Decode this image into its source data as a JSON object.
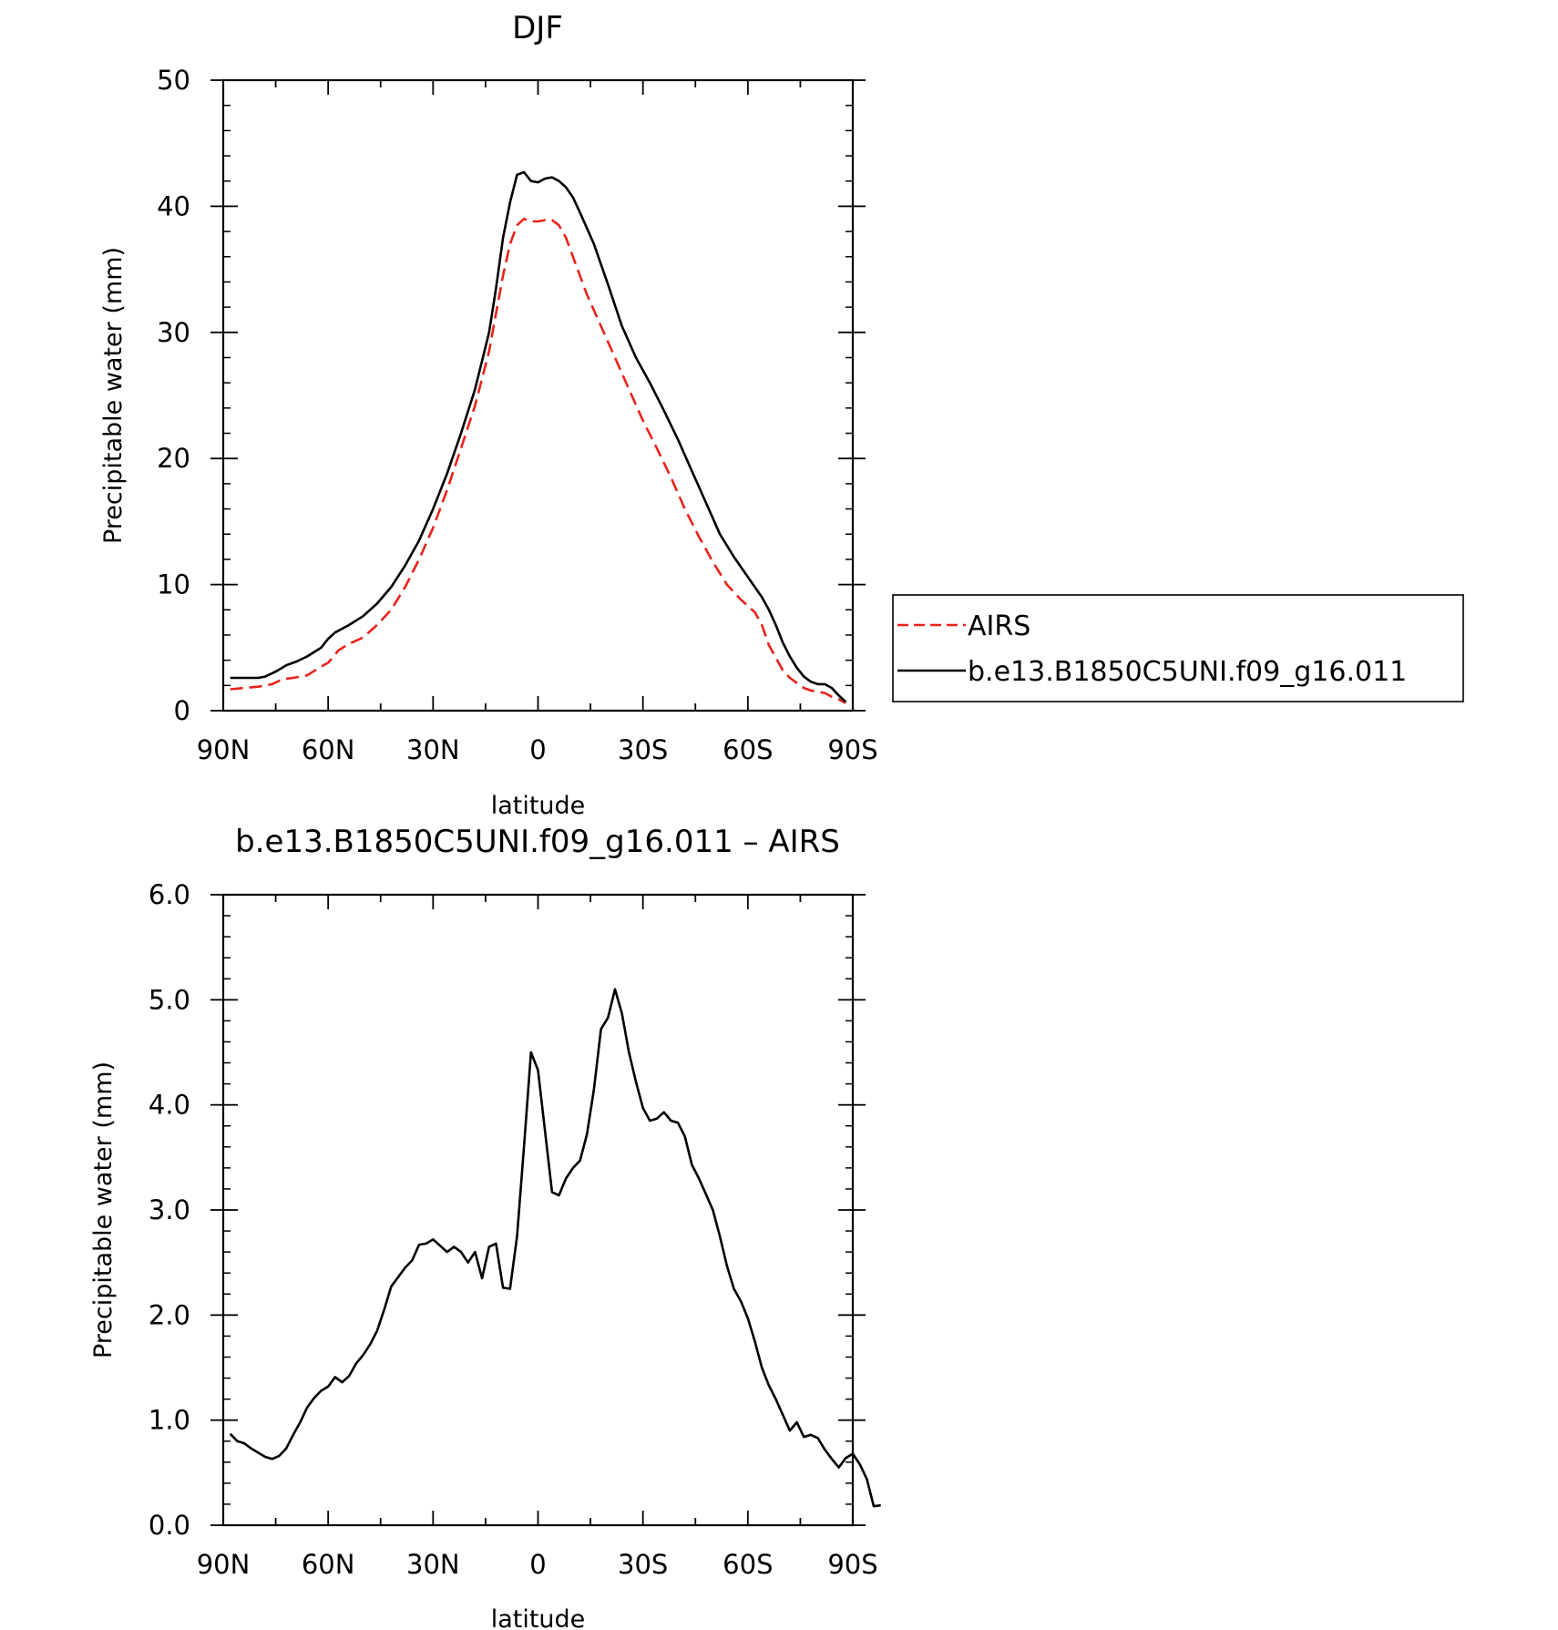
{
  "chart_data": [
    {
      "type": "line",
      "title": "DJF",
      "xlabel": "latitude",
      "ylabel": "Precipitable water (mm)",
      "xlim": [
        90,
        -90
      ],
      "ylim": [
        0,
        50
      ],
      "x_ticks": [
        90,
        60,
        30,
        0,
        -30,
        -60,
        -90
      ],
      "x_tick_labels": [
        "90N",
        "60N",
        "30N",
        "0",
        "30S",
        "60S",
        "90S"
      ],
      "y_ticks": [
        0,
        10,
        20,
        30,
        40,
        50
      ],
      "y_tick_labels": [
        "0",
        "10",
        "20",
        "30",
        "40",
        "50"
      ],
      "legend_position": "right",
      "series": [
        {
          "name": "AIRS",
          "color": "#e8231c",
          "dash": "dashed",
          "points": [
            [
              88,
              1.7
            ],
            [
              84,
              1.8
            ],
            [
              80,
              1.9
            ],
            [
              76,
              2.1
            ],
            [
              73,
              2.5
            ],
            [
              70,
              2.6
            ],
            [
              66,
              2.8
            ],
            [
              62,
              3.5
            ],
            [
              60,
              3.8
            ],
            [
              57,
              4.8
            ],
            [
              54,
              5.3
            ],
            [
              50,
              5.8
            ],
            [
              46,
              6.8
            ],
            [
              42,
              8.0
            ],
            [
              38,
              9.8
            ],
            [
              34,
              12.0
            ],
            [
              30,
              14.5
            ],
            [
              26,
              17.5
            ],
            [
              22,
              20.8
            ],
            [
              18,
              24.2
            ],
            [
              14,
              28.5
            ],
            [
              12,
              31.5
            ],
            [
              10,
              34.5
            ],
            [
              8,
              37.0
            ],
            [
              6,
              38.5
            ],
            [
              4,
              39.0
            ],
            [
              2,
              38.8
            ],
            [
              0,
              38.8
            ],
            [
              -2,
              38.9
            ],
            [
              -4,
              38.9
            ],
            [
              -6,
              38.5
            ],
            [
              -8,
              37.5
            ],
            [
              -10,
              36.0
            ],
            [
              -14,
              33.0
            ],
            [
              -18,
              30.5
            ],
            [
              -22,
              28.0
            ],
            [
              -26,
              25.5
            ],
            [
              -30,
              23.0
            ],
            [
              -34,
              20.8
            ],
            [
              -38,
              18.5
            ],
            [
              -42,
              16.0
            ],
            [
              -46,
              13.8
            ],
            [
              -50,
              11.8
            ],
            [
              -54,
              10.0
            ],
            [
              -58,
              8.8
            ],
            [
              -62,
              7.8
            ],
            [
              -64,
              6.8
            ],
            [
              -66,
              5.2
            ],
            [
              -68,
              4.2
            ],
            [
              -70,
              3.2
            ],
            [
              -72,
              2.6
            ],
            [
              -74,
              2.2
            ],
            [
              -76,
              1.8
            ],
            [
              -78,
              1.6
            ],
            [
              -80,
              1.5
            ],
            [
              -82,
              1.4
            ],
            [
              -84,
              1.1
            ],
            [
              -86,
              0.9
            ],
            [
              -88,
              0.6
            ]
          ]
        },
        {
          "name": "b.e13.B1850C5UNI.f09_g16.011",
          "color": "#000000",
          "dash": "solid",
          "points": [
            [
              88,
              2.6
            ],
            [
              84,
              2.6
            ],
            [
              80,
              2.6
            ],
            [
              78,
              2.7
            ],
            [
              75,
              3.1
            ],
            [
              72,
              3.6
            ],
            [
              69,
              3.9
            ],
            [
              66,
              4.3
            ],
            [
              62,
              5.0
            ],
            [
              60,
              5.7
            ],
            [
              58,
              6.2
            ],
            [
              54,
              6.8
            ],
            [
              50,
              7.5
            ],
            [
              46,
              8.5
            ],
            [
              42,
              9.8
            ],
            [
              38,
              11.5
            ],
            [
              34,
              13.5
            ],
            [
              30,
              16.0
            ],
            [
              26,
              18.8
            ],
            [
              22,
              22.0
            ],
            [
              18,
              25.5
            ],
            [
              14,
              30.0
            ],
            [
              12,
              33.5
            ],
            [
              10,
              37.5
            ],
            [
              8,
              40.3
            ],
            [
              6,
              42.5
            ],
            [
              4,
              42.7
            ],
            [
              2,
              42.0
            ],
            [
              0,
              41.9
            ],
            [
              -2,
              42.2
            ],
            [
              -4,
              42.3
            ],
            [
              -6,
              42.0
            ],
            [
              -8,
              41.5
            ],
            [
              -10,
              40.7
            ],
            [
              -12,
              39.5
            ],
            [
              -16,
              37.0
            ],
            [
              -20,
              33.8
            ],
            [
              -24,
              30.5
            ],
            [
              -28,
              28.0
            ],
            [
              -32,
              26.0
            ],
            [
              -36,
              23.8
            ],
            [
              -40,
              21.5
            ],
            [
              -44,
              19.0
            ],
            [
              -48,
              16.5
            ],
            [
              -52,
              14.0
            ],
            [
              -56,
              12.2
            ],
            [
              -60,
              10.6
            ],
            [
              -64,
              9.0
            ],
            [
              -66,
              8.0
            ],
            [
              -68,
              6.8
            ],
            [
              -70,
              5.4
            ],
            [
              -72,
              4.3
            ],
            [
              -74,
              3.4
            ],
            [
              -76,
              2.7
            ],
            [
              -78,
              2.3
            ],
            [
              -80,
              2.1
            ],
            [
              -82,
              2.1
            ],
            [
              -84,
              1.8
            ],
            [
              -86,
              1.2
            ],
            [
              -88,
              0.7
            ]
          ]
        }
      ]
    },
    {
      "type": "line",
      "title": "b.e13.B1850C5UNI.f09_g16.011 – AIRS",
      "xlabel": "latitude",
      "ylabel": "Precipitable water (mm)",
      "xlim": [
        90,
        -90
      ],
      "ylim": [
        0,
        6
      ],
      "x_ticks": [
        90,
        60,
        30,
        0,
        -30,
        -60,
        -90
      ],
      "x_tick_labels": [
        "90N",
        "60N",
        "30N",
        "0",
        "30S",
        "60S",
        "90S"
      ],
      "y_ticks": [
        0,
        1,
        2,
        3,
        4,
        5,
        6
      ],
      "y_tick_labels": [
        "0.0",
        "1.0",
        "2.0",
        "3.0",
        "4.0",
        "5.0",
        "6.0"
      ],
      "series": [
        {
          "color": "#000000",
          "dash": "solid",
          "points": [
            [
              88,
              0.87
            ],
            [
              86,
              0.8
            ],
            [
              84,
              0.78
            ],
            [
              82,
              0.73
            ],
            [
              80,
              0.69
            ],
            [
              78,
              0.65
            ],
            [
              76,
              0.63
            ],
            [
              74,
              0.66
            ],
            [
              72,
              0.73
            ],
            [
              70,
              0.86
            ],
            [
              68,
              0.98
            ],
            [
              66,
              1.12
            ],
            [
              64,
              1.21
            ],
            [
              62,
              1.28
            ],
            [
              60,
              1.32
            ],
            [
              58,
              1.41
            ],
            [
              56,
              1.36
            ],
            [
              54,
              1.42
            ],
            [
              52,
              1.54
            ],
            [
              50,
              1.62
            ],
            [
              48,
              1.72
            ],
            [
              46,
              1.85
            ],
            [
              44,
              2.05
            ],
            [
              42,
              2.27
            ],
            [
              40,
              2.36
            ],
            [
              38,
              2.45
            ],
            [
              36,
              2.52
            ],
            [
              34,
              2.67
            ],
            [
              32,
              2.68
            ],
            [
              30,
              2.72
            ],
            [
              28,
              2.66
            ],
            [
              26,
              2.6
            ],
            [
              24,
              2.65
            ],
            [
              22,
              2.6
            ],
            [
              20,
              2.5
            ],
            [
              18,
              2.6
            ],
            [
              16,
              2.35
            ],
            [
              14,
              2.65
            ],
            [
              12,
              2.68
            ],
            [
              10,
              2.26
            ],
            [
              8,
              2.25
            ],
            [
              6,
              2.75
            ],
            [
              4,
              3.6
            ],
            [
              2,
              4.5
            ],
            [
              0,
              4.33
            ],
            [
              -2,
              3.75
            ],
            [
              -4,
              3.17
            ],
            [
              -6,
              3.14
            ],
            [
              -8,
              3.3
            ],
            [
              -10,
              3.4
            ],
            [
              -12,
              3.47
            ],
            [
              -14,
              3.72
            ],
            [
              -16,
              4.15
            ],
            [
              -18,
              4.72
            ],
            [
              -20,
              4.83
            ],
            [
              -22,
              5.1
            ],
            [
              -24,
              4.87
            ],
            [
              -26,
              4.5
            ],
            [
              -28,
              4.22
            ],
            [
              -30,
              3.97
            ],
            [
              -32,
              3.85
            ],
            [
              -34,
              3.87
            ],
            [
              -36,
              3.93
            ],
            [
              -38,
              3.85
            ],
            [
              -40,
              3.83
            ],
            [
              -42,
              3.7
            ],
            [
              -44,
              3.43
            ],
            [
              -46,
              3.3
            ],
            [
              -48,
              3.15
            ],
            [
              -50,
              3.0
            ],
            [
              -52,
              2.75
            ],
            [
              -54,
              2.47
            ],
            [
              -56,
              2.25
            ],
            [
              -58,
              2.13
            ],
            [
              -60,
              1.97
            ],
            [
              -62,
              1.75
            ],
            [
              -64,
              1.5
            ],
            [
              -66,
              1.33
            ],
            [
              -68,
              1.2
            ],
            [
              -70,
              1.05
            ],
            [
              -72,
              0.9
            ],
            [
              -74,
              0.98
            ],
            [
              -76,
              0.84
            ],
            [
              -78,
              0.86
            ],
            [
              -80,
              0.83
            ],
            [
              -82,
              0.72
            ],
            [
              -84,
              0.63
            ],
            [
              -86,
              0.55
            ],
            [
              -88,
              0.64
            ],
            [
              -90,
              0.68
            ],
            [
              -92,
              0.58
            ],
            [
              -94,
              0.44
            ],
            [
              -96,
              0.18
            ],
            [
              -98,
              0.19
            ]
          ]
        }
      ]
    }
  ]
}
